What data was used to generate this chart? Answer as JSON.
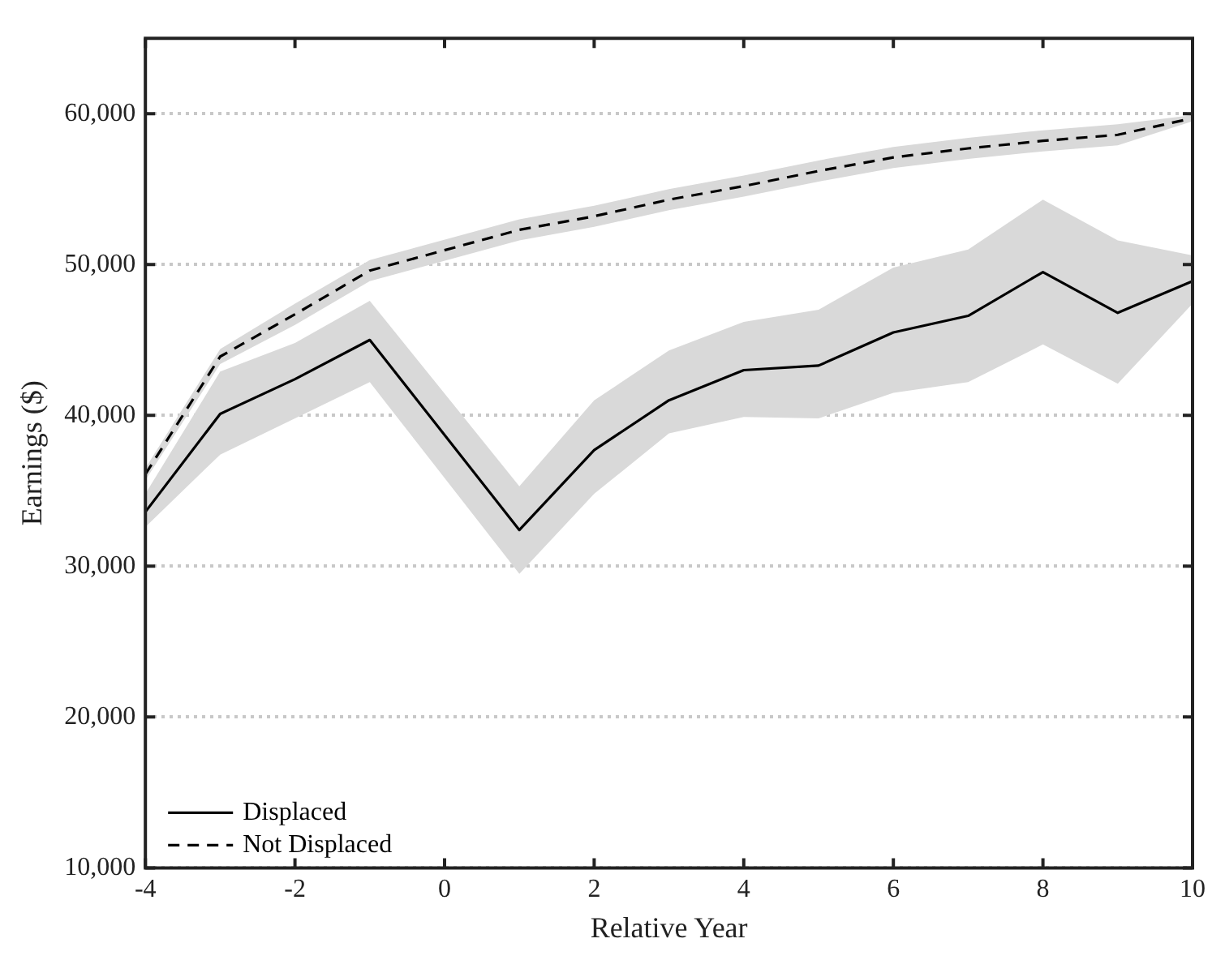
{
  "chart_data": {
    "type": "line",
    "xlabel": "Relative Year",
    "ylabel": "Earnings ($)",
    "x": [
      -4,
      -3,
      -2,
      -1,
      1,
      2,
      3,
      4,
      5,
      6,
      7,
      8,
      9,
      10
    ],
    "series": [
      {
        "name": "Displaced",
        "color": "#000000",
        "line_style": "solid",
        "values": [
          33600,
          40100,
          42400,
          45000,
          32400,
          37700,
          41000,
          43000,
          43300,
          45500,
          46600,
          49500,
          46800,
          48900
        ],
        "lower": [
          32600,
          37400,
          39800,
          42200,
          29500,
          34800,
          38800,
          39900,
          39800,
          41500,
          42200,
          44700,
          42100,
          47400
        ],
        "upper": [
          34800,
          42900,
          44800,
          47600,
          35300,
          41000,
          44300,
          46200,
          47000,
          49800,
          51000,
          54300,
          51600,
          50600
        ]
      },
      {
        "name": "Not Displaced",
        "color": "#000000",
        "line_style": "dashed",
        "values": [
          36100,
          43900,
          46700,
          49600,
          52300,
          53200,
          54300,
          55200,
          56200,
          57100,
          57700,
          58200,
          58600,
          59700
        ],
        "lower": [
          35700,
          43400,
          46000,
          48900,
          51600,
          52500,
          53600,
          54500,
          55500,
          56400,
          57000,
          57500,
          57900,
          59500
        ],
        "upper": [
          36500,
          44400,
          47400,
          50300,
          53000,
          53900,
          55000,
          55900,
          56900,
          57800,
          58400,
          58900,
          59300,
          59900
        ]
      }
    ],
    "xlim": [
      -4,
      10
    ],
    "xticks": [
      -4,
      -2,
      0,
      2,
      4,
      6,
      8,
      10
    ],
    "ylim": [
      10000,
      65000
    ],
    "yticks": [
      {
        "value": 10000,
        "label": "10,000"
      },
      {
        "value": 20000,
        "label": "20,000"
      },
      {
        "value": 30000,
        "label": "30,000"
      },
      {
        "value": 40000,
        "label": "40,000"
      },
      {
        "value": 50000,
        "label": "50,000"
      },
      {
        "value": 60000,
        "label": "60,000"
      }
    ],
    "grid": "y",
    "legend": "bottom left",
    "marker": "none"
  }
}
